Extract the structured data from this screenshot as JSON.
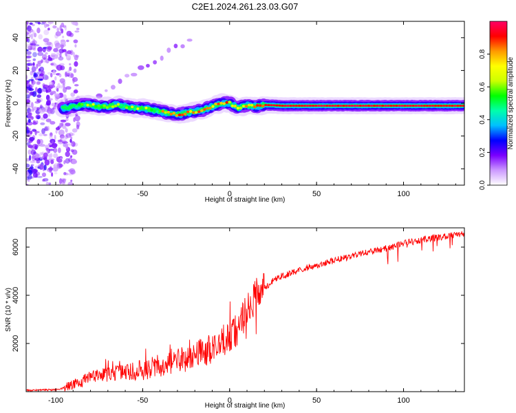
{
  "title": "C2E1.2024.261.23.03.G07",
  "chart_data": [
    {
      "type": "heatmap",
      "xlabel": "Height of straight line (km)",
      "ylabel": "Frequency (Hz)",
      "xlim": [
        -117,
        135
      ],
      "ylim": [
        -50,
        50
      ],
      "x_ticks": [
        -100,
        -50,
        0,
        50,
        100
      ],
      "x_tick_labels": [
        "-100",
        "-50",
        "0",
        "50",
        "100"
      ],
      "y_ticks": [
        -40,
        -20,
        0,
        20,
        40
      ],
      "y_tick_labels": [
        "-40",
        "-20",
        "0",
        "20",
        "40"
      ],
      "grid": false,
      "colorbar": {
        "label": "Normalized spectral amplitude",
        "range": [
          0,
          1
        ],
        "ticks": [
          0,
          0.2,
          0.4,
          0.6,
          0.8
        ],
        "tick_labels": [
          "0.0",
          "0.2",
          "0.4",
          "0.6",
          "0.8"
        ],
        "colors": [
          "#ffffff",
          "#cc99ff",
          "#7a00ff",
          "#0000ff",
          "#00bfff",
          "#00ffaa",
          "#00ff00",
          "#ccff00",
          "#ffff00",
          "#ff9900",
          "#ff0000",
          "#ff0066"
        ]
      },
      "ridge": {
        "x": [
          -95,
          -90,
          -85,
          -80,
          -75,
          -70,
          -65,
          -60,
          -55,
          -50,
          -45,
          -40,
          -35,
          -30,
          -25,
          -20,
          -15,
          -10,
          -5,
          0,
          5,
          10,
          15,
          20,
          30,
          40,
          50,
          60,
          70,
          80,
          90,
          100,
          110,
          120,
          135
        ],
        "y": [
          -3,
          -2,
          -1,
          -1,
          -2,
          -2,
          -1,
          -2,
          -3,
          -3,
          -4,
          -5,
          -6,
          -7,
          -6,
          -5,
          -4,
          -2,
          0,
          0,
          -3,
          -1,
          -2,
          -1,
          -1.5,
          -1.5,
          -1.5,
          -1.5,
          -1.5,
          -1.5,
          -1.5,
          -1.5,
          -1.5,
          -1.5,
          -1.5
        ]
      }
    },
    {
      "type": "line",
      "xlabel": "Height of straight line (km)",
      "ylabel": "SNR (10 * v/v)",
      "xlim": [
        -117,
        135
      ],
      "ylim": [
        0,
        6800
      ],
      "x_ticks": [
        -100,
        -50,
        0,
        50,
        100
      ],
      "x_tick_labels": [
        "-100",
        "-50",
        "0",
        "50",
        "100"
      ],
      "y_ticks": [
        2000,
        4000,
        6000
      ],
      "y_tick_labels": [
        "2000",
        "4000",
        "6000"
      ],
      "grid": false,
      "series_color": "#ff0000",
      "trend": {
        "x": [
          -117,
          -100,
          -95,
          -90,
          -85,
          -80,
          -70,
          -60,
          -50,
          -40,
          -30,
          -20,
          -10,
          0,
          5,
          10,
          15,
          20,
          25,
          30,
          40,
          50,
          60,
          70,
          80,
          90,
          100,
          110,
          120,
          135
        ],
        "y": [
          50,
          80,
          150,
          300,
          400,
          600,
          700,
          800,
          900,
          1100,
          1250,
          1500,
          1800,
          2200,
          2700,
          3300,
          3900,
          4300,
          4600,
          4800,
          5050,
          5250,
          5450,
          5600,
          5800,
          5950,
          6150,
          6300,
          6400,
          6550
        ]
      }
    }
  ]
}
